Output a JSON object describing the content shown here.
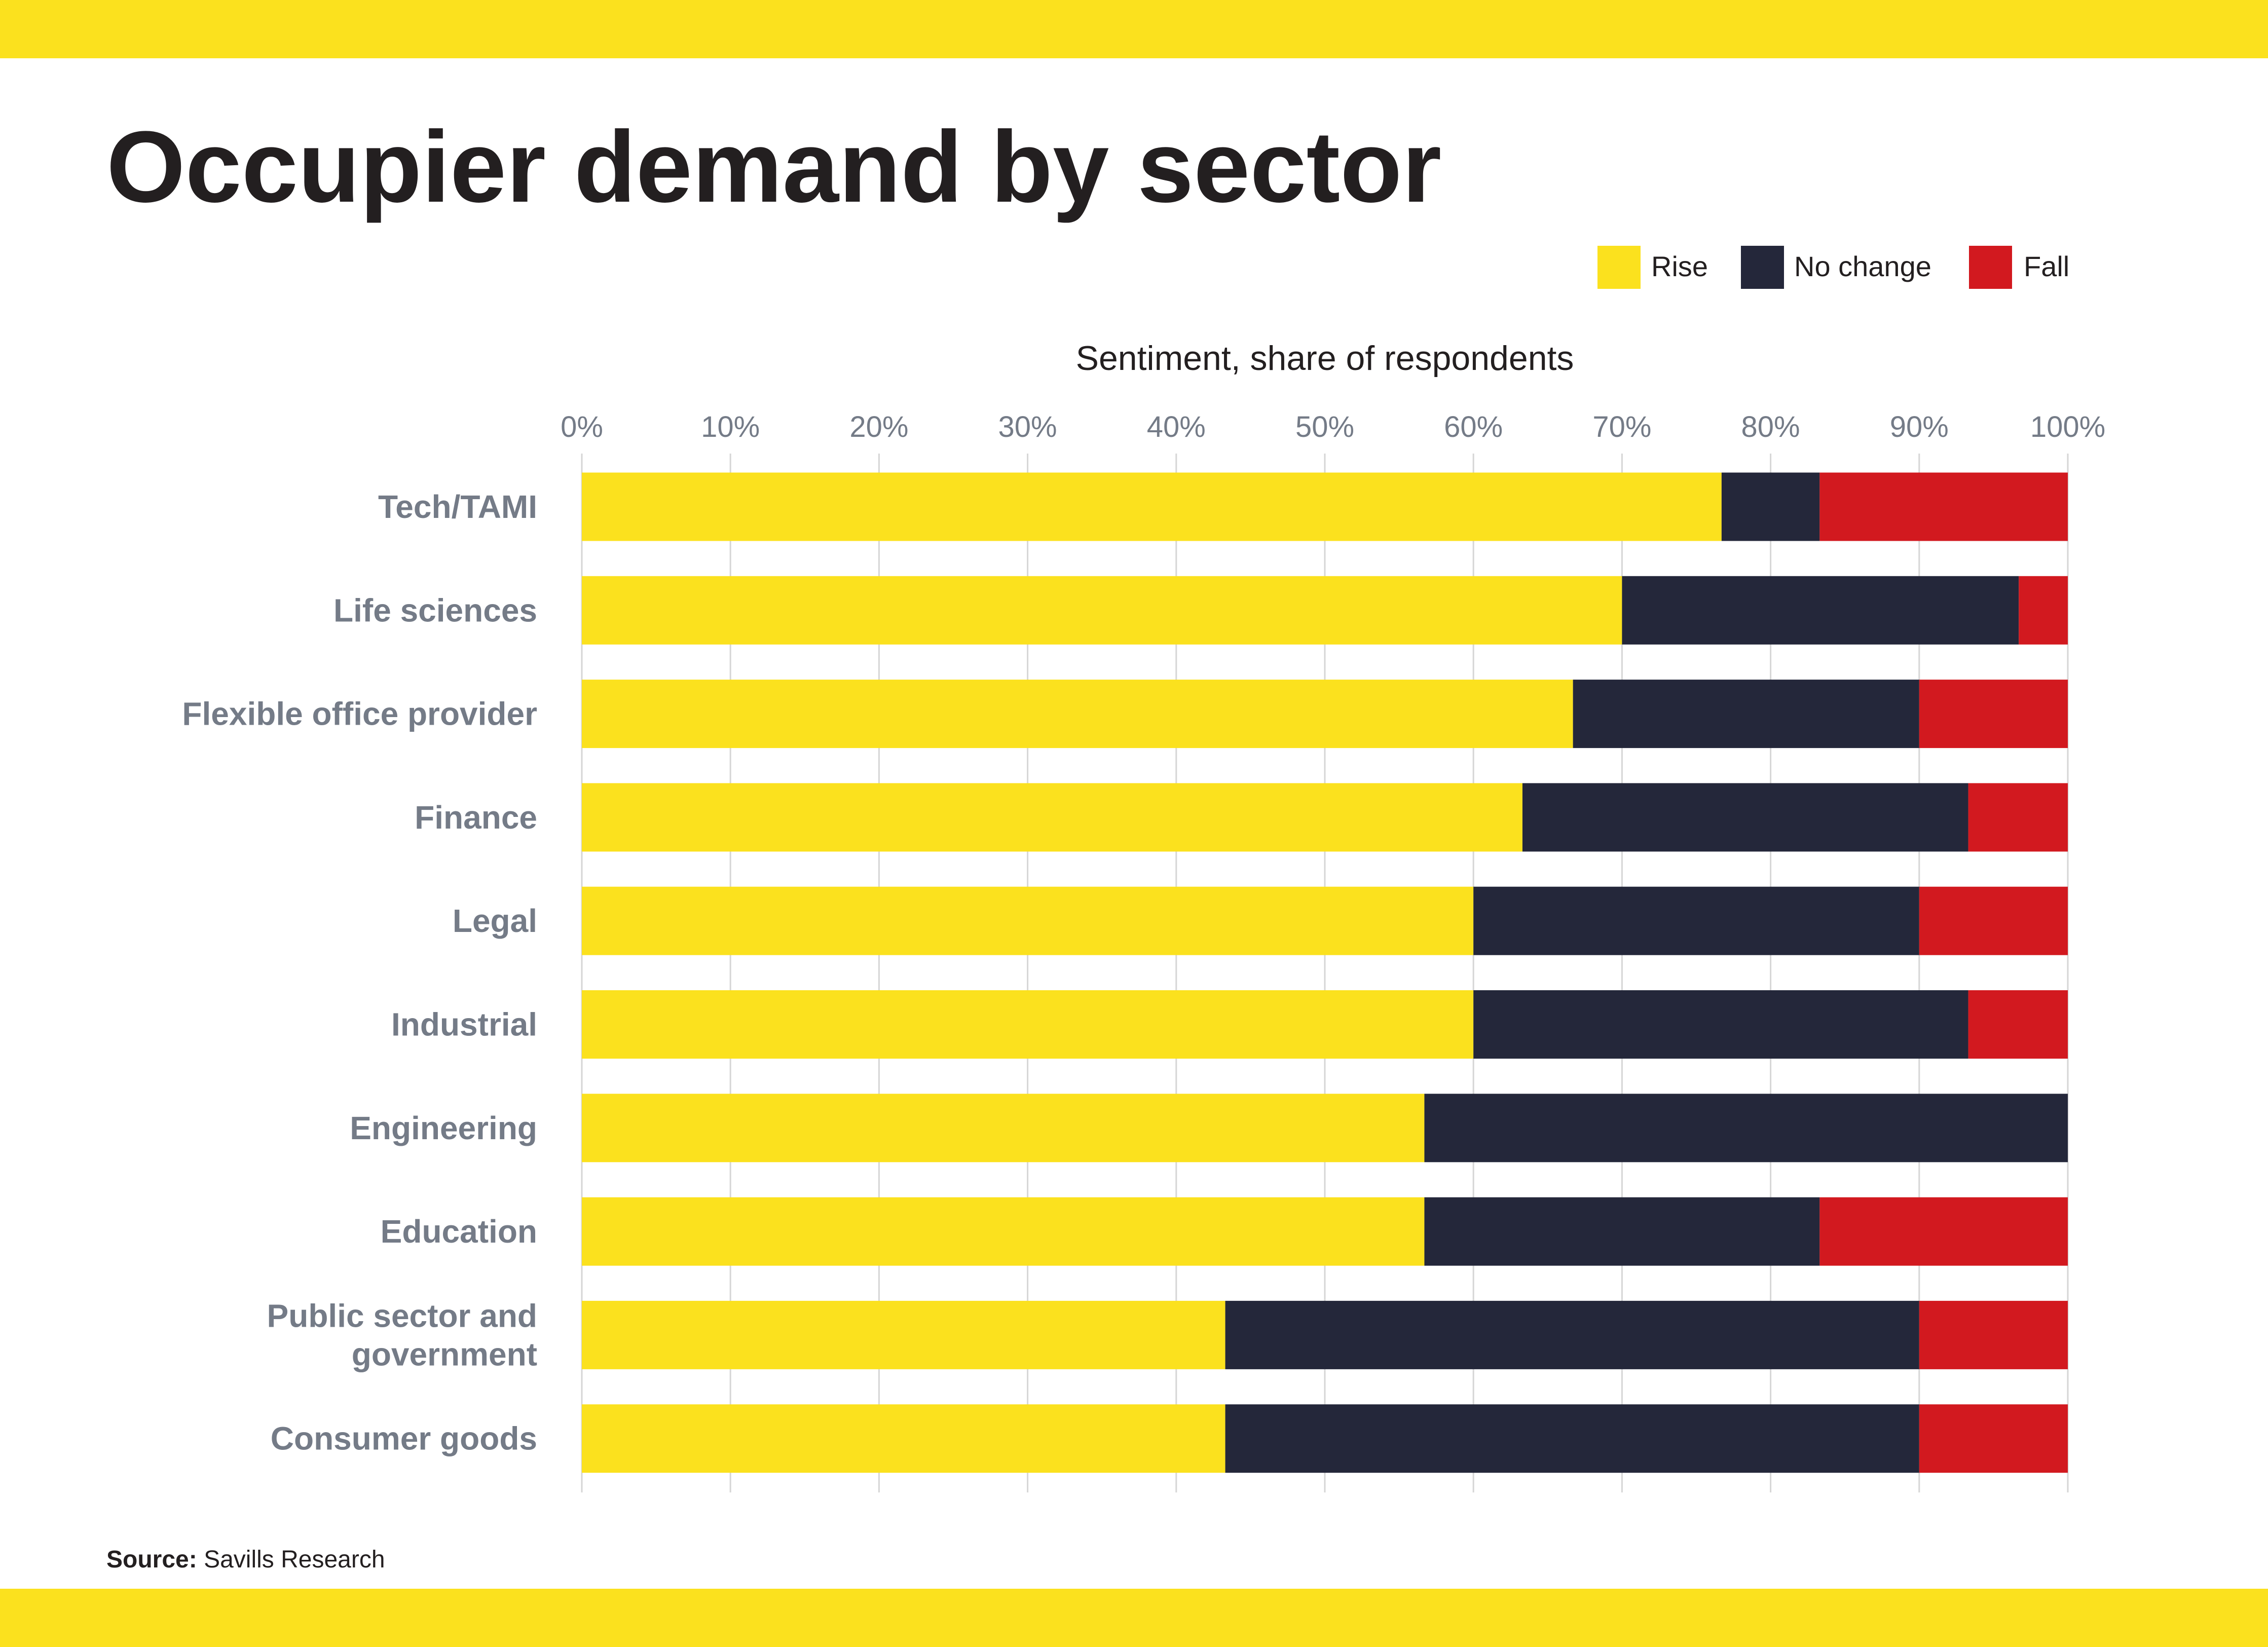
{
  "page": {
    "band_color": "#fbe11e"
  },
  "title": "Occupier demand by sector",
  "source": {
    "label": "Source:",
    "text": "Savills Research"
  },
  "chart_data": {
    "type": "bar",
    "orientation": "horizontal",
    "stacked": true,
    "title": "",
    "xlabel": "Sentiment, share of respondents",
    "ylabel": "",
    "xlim": [
      0,
      100
    ],
    "x_ticks": [
      "0%",
      "10%",
      "20%",
      "30%",
      "40%",
      "50%",
      "60%",
      "70%",
      "80%",
      "90%",
      "100%"
    ],
    "x_axis_position": "top",
    "grid": true,
    "legend": "top-right",
    "categories": [
      "Tech/TAMI",
      "Life sciences",
      "Flexible office provider",
      "Finance",
      "Legal",
      "Industrial",
      "Engineering",
      "Education",
      "Public sector and government",
      "Consumer goods"
    ],
    "category_lines": [
      [
        "Tech/TAMI"
      ],
      [
        "Life sciences"
      ],
      [
        "Flexible office provider"
      ],
      [
        "Finance"
      ],
      [
        "Legal"
      ],
      [
        "Industrial"
      ],
      [
        "Engineering"
      ],
      [
        "Education"
      ],
      [
        "Public sector and",
        "government"
      ],
      [
        "Consumer goods"
      ]
    ],
    "series": [
      {
        "name": "Rise",
        "color": "#fbe11e",
        "values": [
          76.7,
          70,
          66.7,
          63.3,
          60,
          60,
          56.7,
          56.7,
          43.3,
          43.3
        ]
      },
      {
        "name": "No change",
        "color": "#24273a",
        "values": [
          6.6,
          26.7,
          23.3,
          30,
          30,
          33.3,
          43.3,
          26.6,
          46.7,
          46.7
        ]
      },
      {
        "name": "Fall",
        "color": "#d2191f",
        "values": [
          16.7,
          3.3,
          10,
          6.7,
          10,
          6.7,
          0,
          16.7,
          10,
          10
        ]
      }
    ]
  }
}
